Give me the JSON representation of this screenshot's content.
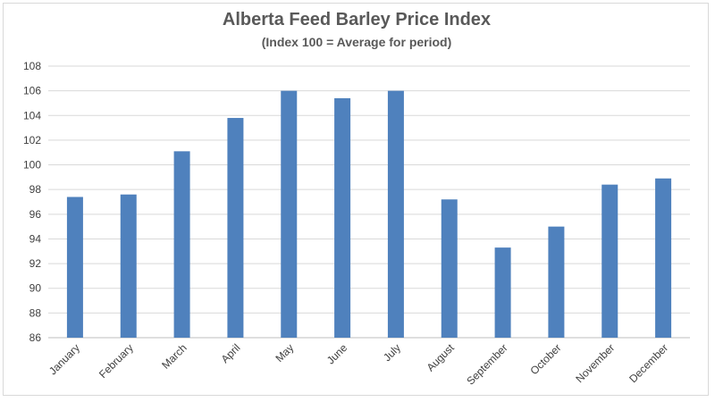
{
  "chart_data": {
    "type": "bar",
    "title": "Alberta Feed Barley Price Index",
    "subtitle": "(Index 100 = Average for period)",
    "xlabel": "",
    "ylabel": "",
    "categories": [
      "January",
      "February",
      "March",
      "April",
      "May",
      "June",
      "July",
      "August",
      "September",
      "October",
      "November",
      "December"
    ],
    "values": [
      97.4,
      97.6,
      101.1,
      103.8,
      106.0,
      105.4,
      106.0,
      97.2,
      93.3,
      95.0,
      98.4,
      98.9
    ],
    "ylim": [
      86,
      108
    ],
    "yticks": [
      "108",
      "106",
      "104",
      "102",
      "100",
      "98",
      "96",
      "94",
      "92",
      "90",
      "88",
      "86"
    ],
    "grid": true,
    "legend": "none",
    "bar_color": "#4f81bd"
  }
}
